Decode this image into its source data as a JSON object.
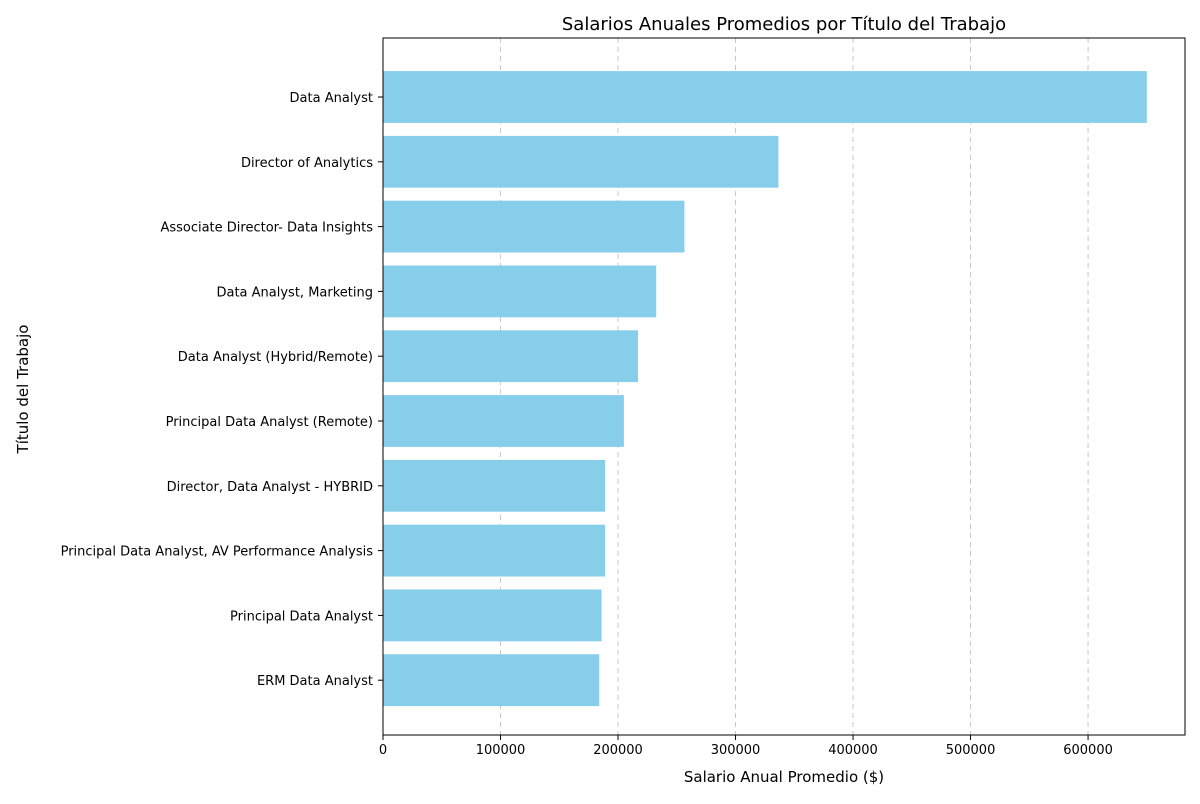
{
  "chart_data": {
    "type": "bar",
    "orientation": "horizontal",
    "title": "Salarios Anuales Promedios por Título del Trabajo",
    "xlabel": "Salario Anual Promedio ($)",
    "ylabel": "Título del Trabajo",
    "categories": [
      "Data Analyst",
      "Director of Analytics",
      "Associate Director- Data Insights",
      "Data Analyst, Marketing",
      "Data Analyst (Hybrid/Remote)",
      "Principal Data Analyst (Remote)",
      "Director, Data Analyst - HYBRID",
      "Principal Data Analyst, AV Performance Analysis",
      "Principal Data Analyst",
      "ERM Data Analyst"
    ],
    "values": [
      650000,
      336500,
      256500,
      232500,
      217000,
      205000,
      189000,
      189000,
      186000,
      184000
    ],
    "xlim": [
      0,
      682500
    ],
    "xticks": [
      0,
      100000,
      200000,
      300000,
      400000,
      500000,
      600000
    ],
    "xtick_labels": [
      "0",
      "100000",
      "200000",
      "300000",
      "400000",
      "500000",
      "600000"
    ],
    "grid": "x-dashed",
    "bar_color": "#87ceeb",
    "grid_color": "#c8c8c8"
  }
}
